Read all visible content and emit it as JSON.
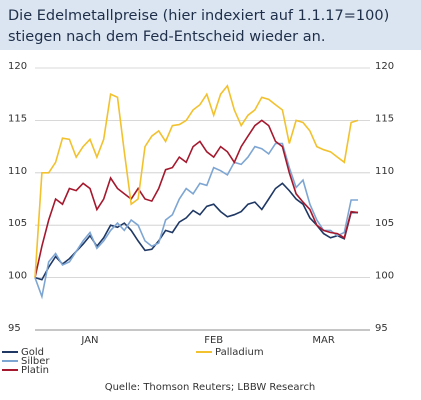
{
  "chart_data": {
    "type": "line",
    "title": [
      "Die Edelmetallpreise (hier indexiert auf 1.1.17=100)",
      "stiegen nach dem Fed-Entscheid wieder an."
    ],
    "source": "Quelle: Thomson Reuters; LBBW Research",
    "categories": [
      null,
      null,
      null,
      null,
      null,
      null,
      null,
      null,
      "JAN",
      null,
      null,
      null,
      null,
      null,
      null,
      null,
      null,
      null,
      null,
      null,
      null,
      null,
      null,
      null,
      null,
      null,
      "FEB",
      null,
      null,
      null,
      null,
      null,
      null,
      null,
      null,
      null,
      null,
      null,
      null,
      null,
      null,
      null,
      "MAR",
      null,
      null,
      null,
      null,
      null
    ],
    "ylim": [
      95,
      120
    ],
    "yticks": [
      95,
      100,
      105,
      110,
      115,
      120
    ],
    "y2lim": [
      95,
      120
    ],
    "y2ticks": [
      95,
      100,
      105,
      110,
      115,
      120
    ],
    "grid": true,
    "series": [
      {
        "name": "Gold",
        "color": "#1f3864",
        "values": [
          100.0,
          99.8,
          101.0,
          102.0,
          101.3,
          101.8,
          102.5,
          103.2,
          104.0,
          103.0,
          103.8,
          105.0,
          104.8,
          105.2,
          104.5,
          103.5,
          102.6,
          102.7,
          103.5,
          104.5,
          104.3,
          105.3,
          105.7,
          106.4,
          106.0,
          106.8,
          107.0,
          106.3,
          105.8,
          106.0,
          106.3,
          107.0,
          107.2,
          106.5,
          107.5,
          108.5,
          109.0,
          108.3,
          107.5,
          107.0,
          105.7,
          105.0,
          104.2,
          103.8,
          104.0,
          103.7,
          106.2,
          106.2
        ]
      },
      {
        "name": "Silber",
        "color": "#7ea6d3",
        "values": [
          100,
          98.2,
          101.5,
          102.3,
          101.2,
          101.5,
          102.5,
          103.5,
          104.3,
          102.8,
          103.5,
          104.5,
          105.2,
          104.5,
          105.5,
          105.0,
          103.5,
          103.0,
          103.3,
          105.5,
          106.0,
          107.5,
          108.5,
          108.0,
          109.0,
          108.8,
          110.5,
          110.2,
          109.8,
          111.0,
          110.8,
          111.5,
          112.5,
          112.3,
          111.8,
          112.8,
          112.8,
          110.5,
          108.6,
          109.3,
          107.0,
          105.5,
          104.5,
          104.5,
          104.0,
          104.3,
          107.4,
          107.4
        ]
      },
      {
        "name": "Platin",
        "color": "#a5192e",
        "values": [
          100,
          103,
          105.5,
          107.5,
          107,
          108.5,
          108.3,
          109,
          108.5,
          106.5,
          107.5,
          109.5,
          108.5,
          108,
          107.5,
          108.5,
          107.5,
          107.3,
          108.5,
          110.3,
          110.5,
          111.5,
          111,
          112.5,
          113,
          112,
          111.5,
          112.5,
          112,
          111,
          112.5,
          113.5,
          114.5,
          115,
          114.5,
          113,
          112.5,
          110,
          108,
          107.2,
          106.5,
          105,
          104.5,
          104.3,
          104.2,
          103.8,
          106.3,
          106.2
        ]
      },
      {
        "name": "Palladium",
        "color": "#f2c12e",
        "values": [
          100,
          110,
          110,
          111,
          113.3,
          113.2,
          111.5,
          112.5,
          113.2,
          111.5,
          113.2,
          117.5,
          117.2,
          112,
          107,
          107.5,
          112.5,
          113.5,
          114,
          113,
          114.5,
          114.6,
          115,
          116,
          116.5,
          117.5,
          115.5,
          117.5,
          118.3,
          116,
          114.5,
          115.5,
          116,
          117.2,
          117,
          116.5,
          116,
          112.8,
          115,
          114.8,
          114,
          112.5,
          112.2,
          112,
          111.5,
          111,
          114.8,
          115
        ]
      }
    ]
  }
}
